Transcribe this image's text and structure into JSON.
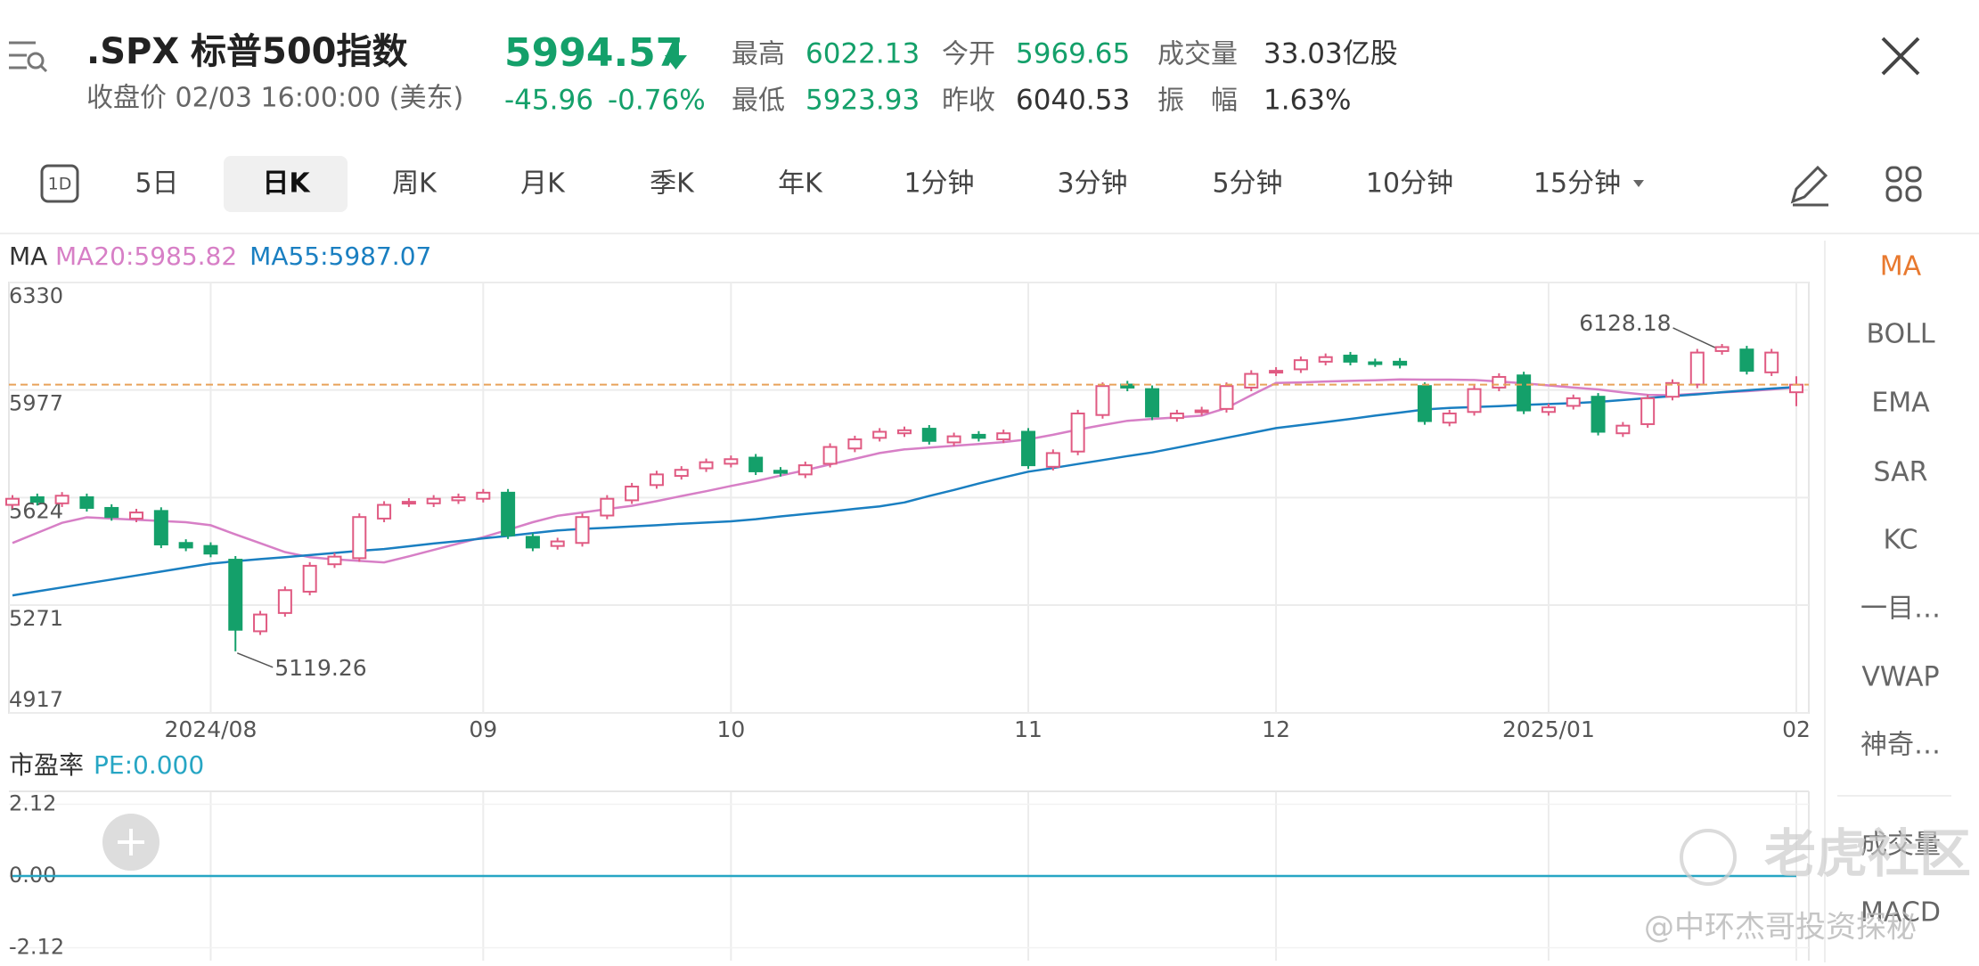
{
  "header": {
    "symbol": ".SPX",
    "name": "标普500指数",
    "price": "5994.57",
    "subtitle": "收盘价 02/03 16:00:00 (美东)",
    "change": "-45.96",
    "change_pct": "-0.76%",
    "stats": [
      {
        "label": "最高",
        "value": "6022.13"
      },
      {
        "label": "今开",
        "value": "5969.65"
      },
      {
        "label": "成交量",
        "value": "33.03亿股"
      },
      {
        "label": "最低",
        "value": "5923.93"
      },
      {
        "label": "昨收",
        "value": "6040.53"
      },
      {
        "label": "振　幅",
        "value": "1.63%"
      }
    ]
  },
  "tabs": [
    "1D",
    "5日",
    "日K",
    "周K",
    "月K",
    "季K",
    "年K",
    "1分钟",
    "3分钟",
    "5分钟",
    "10分钟",
    "15分钟"
  ],
  "side_menu": [
    "MA",
    "BOLL",
    "EMA",
    "SAR",
    "KC",
    "一目…",
    "VWAP",
    "神奇…",
    "成交量",
    "MACD"
  ],
  "watermark": [
    "老虎社区",
    "@中环杰哥投资探秘"
  ],
  "chart_data": [
    {
      "type": "candlestick",
      "indicator": "MA",
      "categories": [
        null,
        null,
        null,
        null,
        null,
        null,
        null,
        null,
        "2024/08",
        null,
        null,
        null,
        null,
        null,
        null,
        null,
        null,
        null,
        null,
        "09",
        null,
        null,
        null,
        null,
        null,
        null,
        null,
        null,
        null,
        "10",
        null,
        null,
        null,
        null,
        null,
        null,
        null,
        null,
        null,
        null,
        null,
        "11",
        null,
        null,
        null,
        null,
        null,
        null,
        null,
        null,
        null,
        "12",
        null,
        null,
        null,
        null,
        null,
        null,
        null,
        null,
        null,
        null,
        "2025/01",
        null,
        null,
        null,
        null,
        null,
        null,
        null,
        null,
        null,
        "02"
      ],
      "open": [
        5600,
        5625,
        5605,
        5625,
        5590,
        5555,
        5580,
        5475,
        5465,
        5420,
        5185,
        5245,
        5315,
        5405,
        5425,
        5555,
        5605,
        5605,
        5615,
        5620,
        5640,
        5495,
        5465,
        5475,
        5565,
        5615,
        5665,
        5695,
        5720,
        5735,
        5755,
        5712,
        5700,
        5735,
        5785,
        5820,
        5835,
        5850,
        5805,
        5830,
        5815,
        5840,
        5725,
        5775,
        5895,
        5995,
        5980,
        5885,
        5905,
        5915,
        5985,
        6035,
        6045,
        6070,
        6090,
        6068,
        6070,
        5990,
        5870,
        5905,
        5985,
        6025,
        5905,
        5925,
        5955,
        5835,
        5865,
        5955,
        5995,
        6105,
        6110,
        6035,
        5969.65
      ],
      "high": [
        5632,
        5637,
        5642,
        5637,
        5602,
        5587,
        5592,
        5487,
        5477,
        5432,
        5252,
        5332,
        5412,
        5442,
        5572,
        5612,
        5622,
        5632,
        5637,
        5652,
        5652,
        5507,
        5492,
        5572,
        5632,
        5672,
        5712,
        5727,
        5752,
        5762,
        5767,
        5724,
        5742,
        5802,
        5827,
        5852,
        5857,
        5862,
        5837,
        5842,
        5847,
        5852,
        5782,
        5912,
        6002,
        6007,
        5992,
        5912,
        5922,
        6002,
        6042,
        6052,
        6087,
        6097,
        6102,
        6080,
        6082,
        6002,
        5912,
        5992,
        6032,
        6037,
        5932,
        5962,
        5967,
        5872,
        5962,
        6012,
        6112,
        6128.18,
        6122,
        6112,
        6022.13
      ],
      "low": [
        5588,
        5598,
        5593,
        5578,
        5548,
        5543,
        5458,
        5448,
        5428,
        5119.26,
        5173,
        5233,
        5303,
        5393,
        5413,
        5543,
        5593,
        5593,
        5603,
        5608,
        5488,
        5448,
        5453,
        5463,
        5553,
        5603,
        5653,
        5683,
        5708,
        5723,
        5698,
        5693,
        5688,
        5723,
        5773,
        5808,
        5823,
        5798,
        5793,
        5808,
        5803,
        5718,
        5713,
        5763,
        5883,
        5973,
        5878,
        5873,
        5893,
        5903,
        5973,
        6023,
        6033,
        6058,
        6058,
        6053,
        6048,
        5863,
        5858,
        5893,
        5973,
        5898,
        5893,
        5913,
        5828,
        5823,
        5853,
        5943,
        5983,
        6093,
        6028,
        6023,
        5923.93
      ],
      "close": [
        5620,
        5610,
        5630,
        5590,
        5560,
        5575,
        5470,
        5460,
        5440,
        5190,
        5240,
        5320,
        5400,
        5430,
        5560,
        5600,
        5610,
        5620,
        5625,
        5640,
        5500,
        5460,
        5480,
        5560,
        5620,
        5660,
        5700,
        5715,
        5740,
        5750,
        5710,
        5705,
        5730,
        5790,
        5815,
        5840,
        5845,
        5810,
        5825,
        5820,
        5835,
        5730,
        5770,
        5900,
        5990,
        5985,
        5890,
        5900,
        5910,
        5990,
        6030,
        6040,
        6075,
        6085,
        6070,
        6065,
        6060,
        5875,
        5900,
        5980,
        6020,
        5910,
        5920,
        5950,
        5840,
        5860,
        5950,
        6000,
        6100,
        6118,
        6040,
        6100,
        5994.57
      ],
      "up_color": "#e05a82",
      "down_color": "#14a06a",
      "last_price_color": "#e8a25a",
      "series": [
        {
          "name": "MA20:5985.82",
          "color": "#d77fc6",
          "values": [
            5475,
            5508,
            5541,
            5559,
            5555,
            5551,
            5547,
            5543,
            5533,
            5503,
            5474,
            5445,
            5428,
            5421,
            5416,
            5411,
            5431,
            5452,
            5473,
            5494,
            5518,
            5543,
            5564,
            5575,
            5586,
            5597,
            5612,
            5629,
            5645,
            5662,
            5678,
            5696,
            5714,
            5733,
            5751,
            5770,
            5782,
            5788,
            5794,
            5800,
            5806,
            5815,
            5830,
            5847,
            5862,
            5876,
            5882,
            5887,
            5893,
            5918,
            5960,
            6000,
            6002,
            6005,
            6007,
            6009,
            6012,
            6011,
            6011,
            6010,
            6005,
            5999,
            5992,
            5985,
            5979,
            5969,
            5961,
            5960,
            5965,
            5969,
            5973,
            5979,
            5985.82
          ]
        },
        {
          "name": "MA55:5987.07",
          "color": "#1a7fc1",
          "values": [
            5303,
            5316,
            5329,
            5342,
            5355,
            5368,
            5381,
            5394,
            5407,
            5415,
            5422,
            5428,
            5435,
            5442,
            5449,
            5455,
            5464,
            5473,
            5481,
            5490,
            5498,
            5507,
            5516,
            5521,
            5525,
            5529,
            5533,
            5538,
            5542,
            5546,
            5553,
            5562,
            5570,
            5578,
            5587,
            5595,
            5608,
            5629,
            5649,
            5670,
            5690,
            5709,
            5721,
            5734,
            5747,
            5760,
            5772,
            5788,
            5804,
            5820,
            5836,
            5852,
            5862,
            5872,
            5882,
            5893,
            5903,
            5913,
            5918,
            5921,
            5924,
            5928,
            5931,
            5934,
            5938,
            5944,
            5951,
            5957,
            5963,
            5970,
            5976,
            5982,
            5987.07
          ]
        }
      ],
      "ylim": [
        4917,
        6330
      ],
      "yticks": [
        6330,
        5977,
        5624,
        5271,
        4917
      ],
      "grid": true
    },
    {
      "type": "line",
      "title": "市盈率",
      "series": [
        {
          "name": "PE:0.000",
          "color": "#27a6c4",
          "values": [
            0,
            0,
            0,
            0,
            0,
            0,
            0,
            0,
            0,
            0,
            0,
            0,
            0,
            0,
            0,
            0,
            0,
            0,
            0,
            0,
            0,
            0,
            0,
            0,
            0,
            0,
            0,
            0,
            0,
            0,
            0,
            0,
            0,
            0,
            0,
            0,
            0,
            0,
            0,
            0,
            0,
            0,
            0,
            0,
            0,
            0,
            0,
            0,
            0,
            0,
            0,
            0,
            0,
            0,
            0,
            0,
            0,
            0,
            0,
            0,
            0,
            0,
            0,
            0,
            0,
            0,
            0,
            0,
            0,
            0,
            0,
            0,
            0
          ]
        }
      ],
      "ylim": [
        -2.5,
        2.5
      ],
      "yticks": [
        2.12,
        {
          "value": 0,
          "label": "0.00"
        },
        -2.12
      ],
      "grid": true
    }
  ]
}
